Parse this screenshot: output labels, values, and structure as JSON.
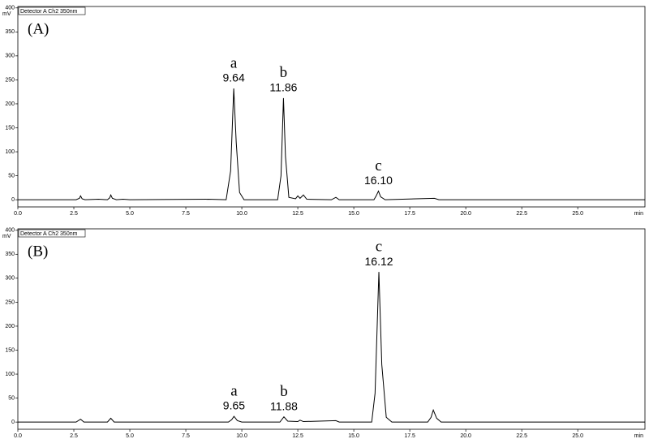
{
  "chart_data": [
    {
      "type": "line",
      "panel_label": "(A)",
      "detector": "Detector A Ch2 350nm",
      "y_unit": "mV",
      "x_unit": "min",
      "xlim": [
        0,
        28
      ],
      "ylim": [
        -15,
        403
      ],
      "xticks": [
        {
          "value": 0,
          "label": "0.0"
        },
        {
          "value": 2.5,
          "label": "2.5"
        },
        {
          "value": 5,
          "label": "5.0"
        },
        {
          "value": 7.5,
          "label": "7.5"
        },
        {
          "value": 10,
          "label": "10.0"
        },
        {
          "value": 12.5,
          "label": "12.5"
        },
        {
          "value": 15,
          "label": "15.0"
        },
        {
          "value": 17.5,
          "label": "17.5"
        },
        {
          "value": 20,
          "label": "20.0"
        },
        {
          "value": 22.5,
          "label": "22.5"
        },
        {
          "value": 25,
          "label": "25.0"
        }
      ],
      "yticks": [
        0,
        50,
        100,
        150,
        200,
        250,
        300,
        350,
        400
      ],
      "series": [
        {
          "color": "#000000",
          "x": [
            0,
            2.6,
            2.75,
            2.8,
            2.87,
            3.0,
            3.6,
            4.0,
            4.1,
            4.15,
            4.22,
            4.4,
            4.7,
            5.0,
            8.5,
            9.3,
            9.5,
            9.64,
            9.75,
            9.9,
            10.1,
            11.6,
            11.75,
            11.86,
            11.95,
            12.1,
            12.4,
            12.5,
            12.6,
            12.75,
            12.9,
            14.0,
            14.2,
            14.35,
            15.9,
            16.0,
            16.1,
            16.2,
            16.4,
            18.6,
            18.8,
            28
          ],
          "values": [
            0,
            0,
            3,
            8,
            2,
            0,
            1,
            0,
            4,
            10,
            3,
            0,
            1,
            0,
            1,
            0,
            60,
            232,
            120,
            15,
            0,
            0,
            50,
            212,
            90,
            5,
            2,
            8,
            3,
            10,
            1,
            0,
            5,
            0,
            0,
            8,
            18,
            6,
            0,
            3,
            0,
            0
          ]
        }
      ],
      "annotations": [
        {
          "letter": "a",
          "label": "9.64",
          "x": 9.64
        },
        {
          "letter": "b",
          "label": "11.86",
          "x": 11.86
        },
        {
          "letter": "c",
          "label": "16.10",
          "x": 16.1
        }
      ]
    },
    {
      "type": "line",
      "panel_label": "(B)",
      "detector": "Detector A Ch2 350nm",
      "y_unit": "mV",
      "x_unit": "min",
      "xlim": [
        0,
        28
      ],
      "ylim": [
        -15,
        403
      ],
      "xticks": [
        {
          "value": 0,
          "label": "0.0"
        },
        {
          "value": 2.5,
          "label": "2.5"
        },
        {
          "value": 5,
          "label": "5.0"
        },
        {
          "value": 7.5,
          "label": "7.5"
        },
        {
          "value": 10,
          "label": "10.0"
        },
        {
          "value": 12.5,
          "label": "12.5"
        },
        {
          "value": 15,
          "label": "15.0"
        },
        {
          "value": 17.5,
          "label": "17.5"
        },
        {
          "value": 20,
          "label": "20.0"
        },
        {
          "value": 22.5,
          "label": "22.5"
        },
        {
          "value": 25,
          "label": "25.0"
        }
      ],
      "yticks": [
        0,
        50,
        100,
        150,
        200,
        250,
        300,
        350,
        400
      ],
      "series": [
        {
          "color": "#000000",
          "x": [
            0,
            2.6,
            2.8,
            2.95,
            4.0,
            4.15,
            4.3,
            9.4,
            9.55,
            9.65,
            9.8,
            10.0,
            11.7,
            11.88,
            12.05,
            12.5,
            12.6,
            12.75,
            14.2,
            14.35,
            15.8,
            15.95,
            16.12,
            16.25,
            16.45,
            16.7,
            18.3,
            18.45,
            18.55,
            18.7,
            18.9,
            28
          ],
          "values": [
            0,
            0,
            6,
            0,
            0,
            8,
            0,
            0,
            5,
            12,
            3,
            0,
            0,
            11,
            2,
            1,
            4,
            1,
            3,
            0,
            0,
            60,
            313,
            120,
            10,
            0,
            0,
            10,
            25,
            8,
            0,
            0
          ]
        }
      ],
      "annotations": [
        {
          "letter": "a",
          "label": "9.65",
          "x": 9.65
        },
        {
          "letter": "b",
          "label": "11.88",
          "x": 11.88
        },
        {
          "letter": "c",
          "label": "16.12",
          "x": 16.12
        }
      ]
    }
  ]
}
